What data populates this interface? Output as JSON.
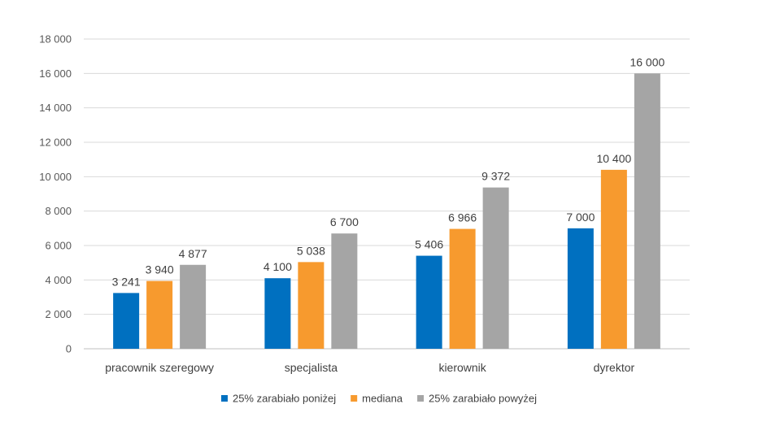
{
  "chart_data": {
    "type": "bar",
    "title": "",
    "xlabel": "",
    "ylabel": "",
    "ylim": [
      0,
      18000
    ],
    "yticks": [
      0,
      2000,
      4000,
      6000,
      8000,
      10000,
      12000,
      14000,
      16000,
      18000
    ],
    "ytick_labels": [
      "0",
      "2 000",
      "4 000",
      "6 000",
      "8 000",
      "10 000",
      "12 000",
      "14 000",
      "16 000",
      "18 000"
    ],
    "grid": true,
    "legend_position": "bottom",
    "categories": [
      "pracownik szeregowy",
      "specjalista",
      "kierownik",
      "dyrektor"
    ],
    "series": [
      {
        "name": "25% zarabiało poniżej",
        "color": "#0070C0",
        "values": [
          3241,
          4100,
          5406,
          7000
        ],
        "labels": [
          "3 241",
          "4 100",
          "5 406",
          "7 000"
        ]
      },
      {
        "name": "mediana",
        "color": "#F79A2E",
        "values": [
          3940,
          5038,
          6966,
          10400
        ],
        "labels": [
          "3 940",
          "5 038",
          "6 966",
          "10 400"
        ]
      },
      {
        "name": "25% zarabiało powyżej",
        "color": "#A5A5A5",
        "values": [
          4877,
          6700,
          9372,
          16000
        ],
        "labels": [
          "4 877",
          "6 700",
          "9 372",
          "16 000"
        ]
      }
    ]
  }
}
